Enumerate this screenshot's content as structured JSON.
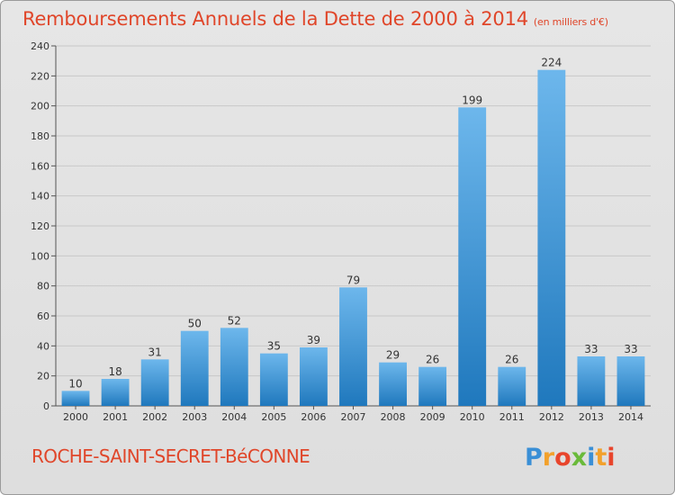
{
  "header": {
    "title": "Remboursements Annuels de la Dette de 2000 à 2014",
    "unit": "(en milliers d'€)"
  },
  "footer": {
    "commune": "ROCHE-SAINT-SECRET-BéCONNE",
    "logo_text": "Proxiti"
  },
  "colors": {
    "title": "#e0462a",
    "bar_light": "#6db7ec",
    "bar_dark": "#1f78bd",
    "background": "#e2e2e2"
  },
  "chart_data": {
    "type": "bar",
    "categories": [
      "2000",
      "2001",
      "2002",
      "2003",
      "2004",
      "2005",
      "2006",
      "2007",
      "2008",
      "2009",
      "2010",
      "2011",
      "2012",
      "2013",
      "2014"
    ],
    "values": [
      10,
      18,
      31,
      50,
      52,
      35,
      39,
      79,
      29,
      26,
      199,
      26,
      224,
      33,
      33
    ],
    "title": "Remboursements Annuels de la Dette de 2000 à 2014",
    "ylim": [
      0,
      240
    ],
    "yticks": [
      0,
      20,
      40,
      60,
      80,
      100,
      120,
      140,
      160,
      180,
      200,
      220,
      240
    ],
    "grid": true,
    "data_labels": true
  }
}
